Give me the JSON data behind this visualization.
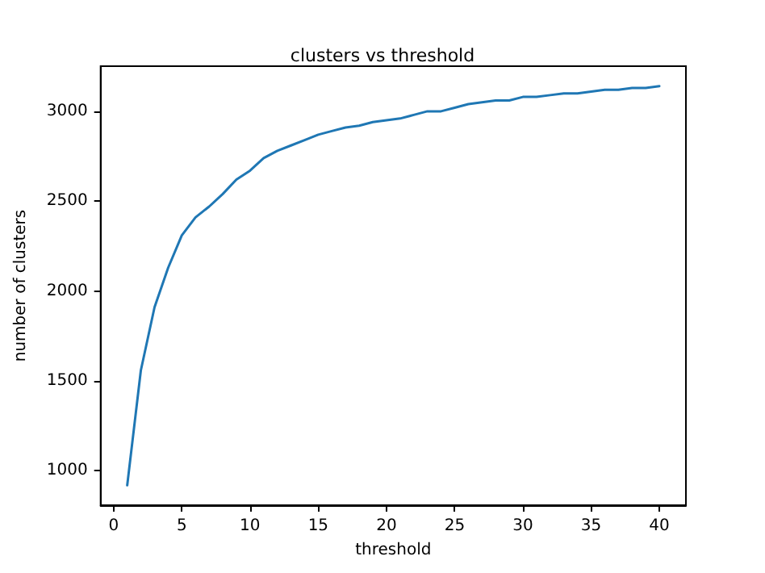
{
  "chart_data": {
    "type": "line",
    "title": "clusters vs threshold",
    "xlabel": "threshold",
    "ylabel": "number of clusters",
    "x": [
      1,
      2,
      3,
      4,
      5,
      6,
      7,
      8,
      9,
      10,
      11,
      12,
      13,
      14,
      15,
      16,
      17,
      18,
      19,
      20,
      21,
      22,
      23,
      24,
      25,
      26,
      27,
      28,
      29,
      30,
      31,
      32,
      33,
      34,
      35,
      36,
      37,
      38,
      39,
      40
    ],
    "series": [
      {
        "color": "#1f77b4",
        "values": [
          920,
          1560,
          1910,
          2130,
          2310,
          2410,
          2470,
          2540,
          2620,
          2670,
          2740,
          2780,
          2810,
          2840,
          2870,
          2890,
          2910,
          2920,
          2940,
          2950,
          2960,
          2980,
          3000,
          3000,
          3020,
          3040,
          3050,
          3060,
          3060,
          3080,
          3080,
          3090,
          3100,
          3100,
          3110,
          3120,
          3120,
          3130,
          3130,
          3140
        ]
      }
    ],
    "xlim": [
      -0.95,
      41.95
    ],
    "ylim": [
      809,
      3251
    ],
    "xticks": [
      0,
      5,
      10,
      15,
      20,
      25,
      30,
      35,
      40
    ],
    "yticks": [
      1000,
      1500,
      2000,
      2500,
      3000
    ],
    "grid": false,
    "marker": "none",
    "line_style": "solid"
  }
}
